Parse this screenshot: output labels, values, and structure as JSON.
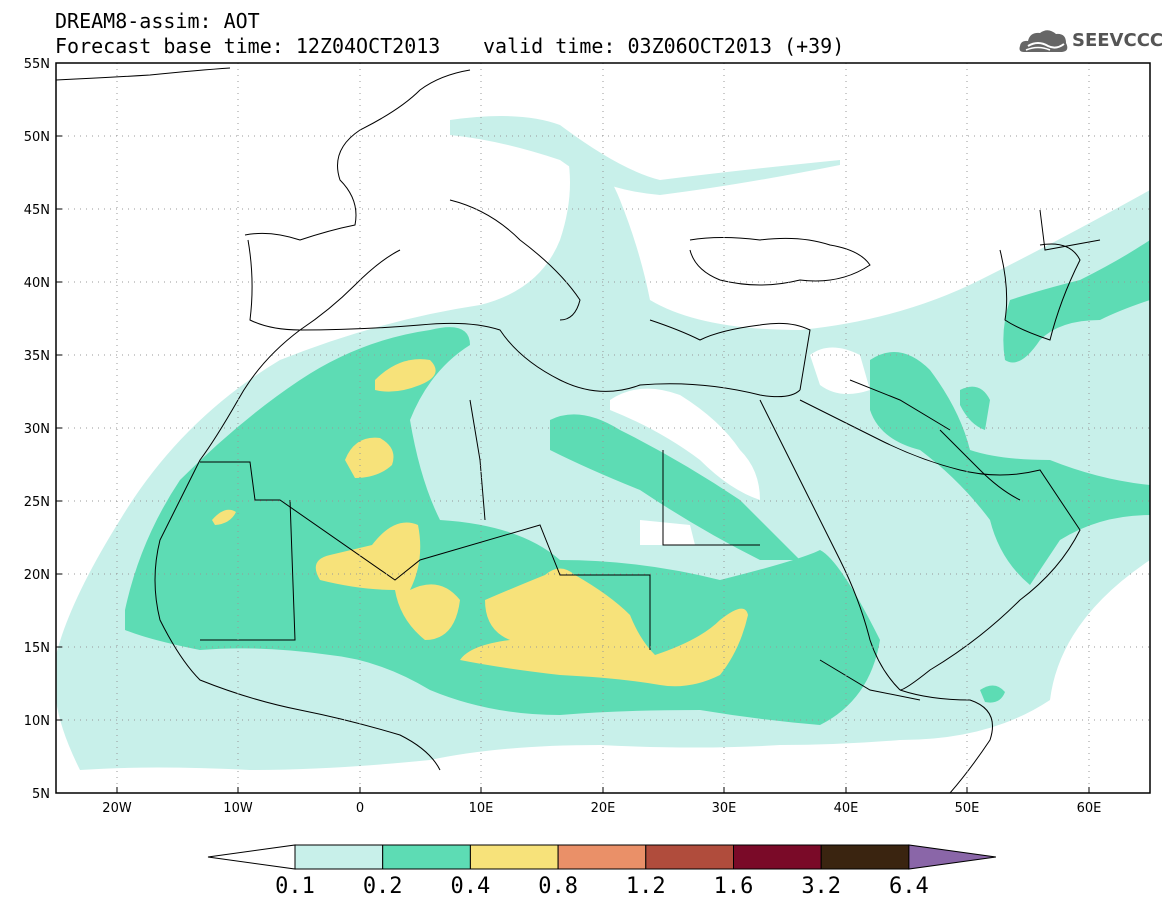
{
  "header": {
    "title": "DREAM8-assim: AOT",
    "base_time": "Forecast base time: 12Z04OCT2013",
    "valid_time": "valid time: 03Z06OCT2013 (+39)",
    "logo_text": "SEEVCCC"
  },
  "map": {
    "lat_labels": [
      "55N",
      "50N",
      "45N",
      "40N",
      "35N",
      "30N",
      "25N",
      "20N",
      "15N",
      "10N",
      "5N"
    ],
    "lon_labels": [
      "20W",
      "10W",
      "0",
      "10E",
      "20E",
      "30E",
      "40E",
      "50E",
      "60E"
    ],
    "lon_range": [
      -25,
      65
    ],
    "lat_range": [
      5,
      55
    ],
    "grid": "dotted"
  },
  "legend": {
    "levels": [
      "0.1",
      "0.2",
      "0.4",
      "0.8",
      "1.2",
      "1.6",
      "3.2",
      "6.4"
    ],
    "colors": [
      "#c8f0ea",
      "#5ddcb4",
      "#f7e27a",
      "#ea9068",
      "#b04c3c",
      "#7a0a28",
      "#3a2410",
      "#8a66a8"
    ]
  },
  "colors": {
    "low": "#c8f0ea",
    "mid": "#5ddcb4",
    "high": "#f7e27a"
  }
}
